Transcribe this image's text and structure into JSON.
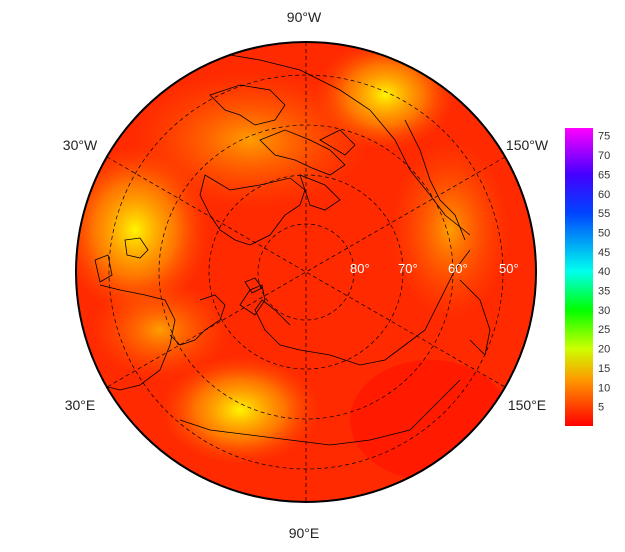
{
  "map": {
    "projection": "north-polar-stereographic",
    "longitude_labels": {
      "top": "90°W",
      "upper_left": "30°W",
      "upper_right": "150°W",
      "lower_left": "30°E",
      "lower_right": "150°E",
      "bottom": "90°E"
    },
    "latitude_labels": [
      "80°",
      "70°",
      "60°",
      "50°"
    ],
    "colors": {
      "ocean_base": "#ff2a00",
      "coastline": "#000000",
      "graticule": "#000000",
      "latitude_label": "#ffffff"
    }
  },
  "colorbar": {
    "tick_labels": [
      "75",
      "70",
      "65",
      "60",
      "55",
      "50",
      "45",
      "40",
      "35",
      "30",
      "25",
      "20",
      "15",
      "10",
      "5"
    ],
    "min": 0,
    "max": 77,
    "stops": [
      {
        "value": 0,
        "color": "#ff0000"
      },
      {
        "value": 12,
        "color": "#ff9900"
      },
      {
        "value": 20,
        "color": "#ccff00"
      },
      {
        "value": 30,
        "color": "#00ff00"
      },
      {
        "value": 40,
        "color": "#00ffee"
      },
      {
        "value": 55,
        "color": "#0044ff"
      },
      {
        "value": 65,
        "color": "#4400ff"
      },
      {
        "value": 77,
        "color": "#ff00ff"
      }
    ]
  }
}
